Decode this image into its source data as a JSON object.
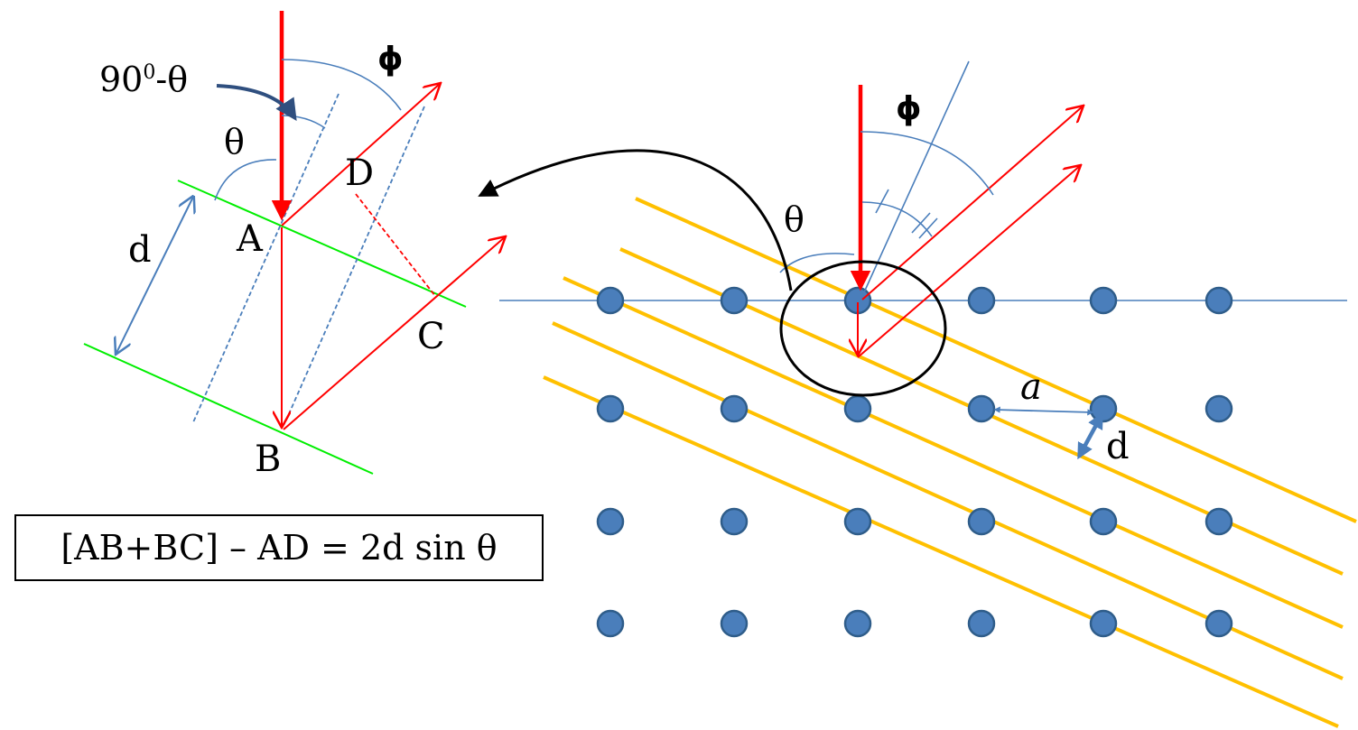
{
  "formula": "[AB+BC] – AD = 2d sin θ",
  "left_diagram": {
    "angle_label_complement": "90",
    "angle_label_complement_sup": "0",
    "angle_label_complement_rest": "-θ",
    "angle_label_phi": "ϕ",
    "angle_label_theta": "θ",
    "label_d": "d",
    "point_A": "A",
    "point_B": "B",
    "point_C": "C",
    "point_D": "D"
  },
  "right_diagram": {
    "angle_label_phi": "ϕ",
    "angle_label_theta": "θ",
    "label_a": "a",
    "label_d": "d",
    "lattice": {
      "columns": 6,
      "rows": 4,
      "atom_color": "#4a7ebb"
    }
  },
  "colors": {
    "beam": "#ff0000",
    "plane_green": "#00ee00",
    "plane_orange": "#ffc000",
    "construction": "#4a7ebb",
    "black": "#000000"
  }
}
